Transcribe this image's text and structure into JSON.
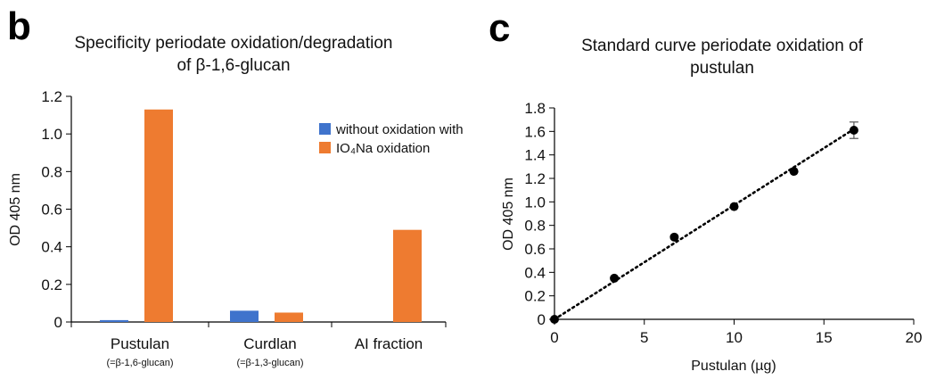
{
  "panels": {
    "b": {
      "letter": "b"
    },
    "c": {
      "letter": "c"
    }
  },
  "colors": {
    "without": "#3f73cc",
    "with": "#ee7b30",
    "points": "#000000"
  },
  "chart_data": [
    {
      "type": "bar",
      "title_lines": [
        "Specificity periodate oxidation/degradation",
        "of β-1,6-glucan"
      ],
      "ylabel": "OD 405 nm",
      "xlabel": "",
      "ylim": [
        0,
        1.2
      ],
      "yticks": [
        "0",
        "0.2",
        "0.4",
        "0.6",
        "0.8",
        "1.0",
        "1.2"
      ],
      "categories": [
        "Pustulan",
        "Curdlan",
        "AI fraction"
      ],
      "category_sublabels": [
        "(=β-1,6-glucan)",
        "(=β-1,3-glucan)",
        ""
      ],
      "legend": {
        "position": "top-right",
        "entries": [
          "without oxidation with",
          "IO₄Na oxidation"
        ]
      },
      "series": [
        {
          "name": "without oxidation with",
          "values": [
            0.01,
            0.06,
            0
          ]
        },
        {
          "name": "IO₄Na oxidation",
          "values": [
            1.13,
            0.05,
            0.49
          ]
        }
      ],
      "grid": false
    },
    {
      "type": "scatter",
      "title_lines": [
        "Standard curve periodate oxidation of",
        "pustulan"
      ],
      "xlabel": "Pustulan (µg)",
      "ylabel": "OD 405 nm",
      "xlim": [
        0,
        20
      ],
      "ylim": [
        0,
        1.8
      ],
      "xticks": [
        "0",
        "5",
        "10",
        "15",
        "20"
      ],
      "yticks": [
        "0",
        "0.2",
        "0.4",
        "0.6",
        "0.8",
        "1.0",
        "1.2",
        "1.4",
        "1.6",
        "1.8"
      ],
      "points": [
        {
          "x": 0,
          "y": 0.0
        },
        {
          "x": 3.33,
          "y": 0.35
        },
        {
          "x": 6.67,
          "y": 0.7
        },
        {
          "x": 10,
          "y": 0.96
        },
        {
          "x": 13.33,
          "y": 1.26
        },
        {
          "x": 16.67,
          "y": 1.61,
          "err": 0.07
        }
      ],
      "fit": {
        "style": "dotted",
        "from": [
          0,
          0
        ],
        "to": [
          16.67,
          1.62
        ]
      },
      "grid": false
    }
  ]
}
